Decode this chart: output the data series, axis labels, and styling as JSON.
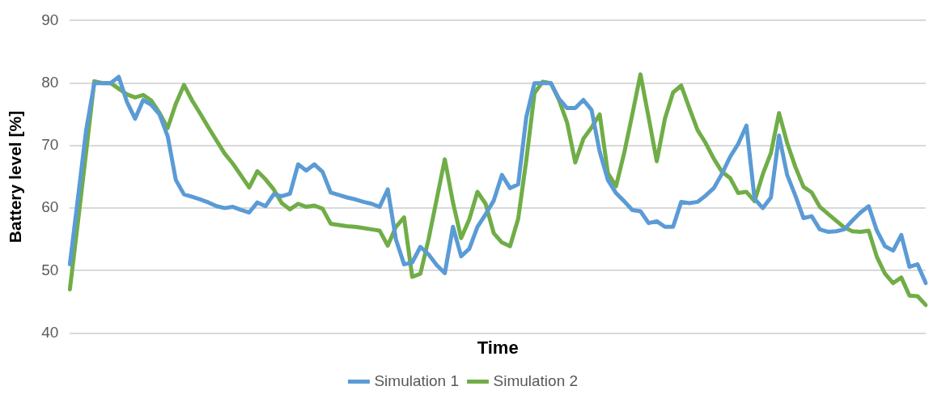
{
  "chart_data": {
    "type": "line",
    "xlabel": "Time",
    "ylabel": "Battery level [%]",
    "ylim": [
      40,
      90
    ],
    "yticks": [
      40,
      50,
      60,
      70,
      80,
      90
    ],
    "grid": "y",
    "legend": "bottom",
    "tick_labels": "y",
    "marker": "none",
    "line_style": "solid",
    "categories": [
      null,
      null,
      null,
      null,
      null,
      null,
      null,
      null,
      null,
      null,
      null,
      null,
      null,
      null,
      null,
      null,
      null,
      null,
      null,
      null,
      null,
      null,
      null,
      null,
      null,
      null,
      null,
      null,
      null,
      null,
      null,
      null,
      null,
      null,
      null,
      null,
      null,
      null,
      null,
      null,
      null,
      null,
      null,
      null,
      null,
      null,
      null,
      null,
      null,
      null,
      null,
      null,
      null,
      null,
      null,
      null,
      null,
      null,
      null,
      null,
      null,
      null,
      null,
      null,
      null,
      null,
      null,
      null,
      null,
      null,
      null,
      null,
      null,
      null,
      null,
      null,
      null,
      null,
      null,
      null,
      null,
      null,
      null,
      null,
      null,
      null,
      null,
      null,
      null,
      null,
      null,
      null,
      null,
      null,
      null,
      null,
      null,
      null,
      null,
      null,
      null,
      null,
      null,
      null,
      null,
      null
    ],
    "series": [
      {
        "name": "Simulation 1",
        "color": "#5b9bd5",
        "values": [
          51,
          61.7,
          72.5,
          80,
          80,
          80,
          81,
          77,
          74.3,
          77.3,
          76.5,
          75,
          71.5,
          64.5,
          62.2,
          61.8,
          61.4,
          60.9,
          60.3,
          60,
          60.2,
          59.7,
          59.3,
          60.9,
          60.3,
          62.2,
          61.9,
          62.3,
          67,
          66,
          67,
          65.8,
          62.5,
          62.1,
          61.7,
          61.4,
          61,
          60.7,
          60.2,
          63,
          55,
          51,
          51.3,
          53.8,
          52.6,
          50.9,
          49.6,
          57,
          52.3,
          53.5,
          57,
          59,
          61.2,
          65.3,
          63.2,
          63.8,
          74.6,
          80,
          80,
          80,
          77.5,
          76,
          76,
          77.3,
          75.7,
          69,
          64.5,
          62.4,
          61.1,
          59.7,
          59.5,
          57.6,
          57.9,
          57,
          57,
          61,
          60.8,
          61,
          62,
          63.2,
          65.5,
          68.2,
          70.3,
          73.2,
          61.5,
          60,
          61.7,
          71.6,
          65.3,
          62,
          58.4,
          58.7,
          56.6,
          56.2,
          56.3,
          56.6,
          58,
          59.3,
          60.3,
          56.4,
          53.9,
          53.2,
          55.7,
          50.6,
          51,
          48
        ]
      },
      {
        "name": "Simulation 2",
        "color": "#70ad47",
        "values": [
          47,
          57.9,
          69,
          80.3,
          80,
          80,
          79.1,
          78.2,
          77.7,
          78.1,
          77.2,
          75.2,
          72.8,
          76.7,
          79.7,
          77.2,
          75.1,
          72.9,
          70.8,
          68.7,
          67.1,
          65.2,
          63.3,
          65.9,
          64.6,
          63,
          60.8,
          59.8,
          60.7,
          60.2,
          60.4,
          59.9,
          57.5,
          57.3,
          57.1,
          57,
          56.8,
          56.6,
          56.4,
          54,
          57,
          58.5,
          49,
          49.5,
          55,
          61.4,
          67.8,
          60.9,
          55.2,
          58.2,
          62.6,
          60.7,
          56,
          54.5,
          53.9,
          58.3,
          67.7,
          78.4,
          80.2,
          80,
          77.3,
          73.7,
          67.3,
          71.1,
          72.9,
          75,
          65.6,
          63.5,
          68.8,
          75,
          81.4,
          74.5,
          67.5,
          74.3,
          78.5,
          79.6,
          76,
          72.5,
          70.4,
          67.9,
          65.8,
          64.8,
          62.4,
          62.6,
          61.1,
          65.4,
          68.8,
          75.2,
          70.4,
          66.6,
          63.4,
          62.5,
          60.2,
          59.1,
          58,
          56.9,
          56.3,
          56.2,
          56.4,
          52.2,
          49.5,
          48,
          48.9,
          46,
          45.9,
          44.5
        ]
      }
    ]
  }
}
